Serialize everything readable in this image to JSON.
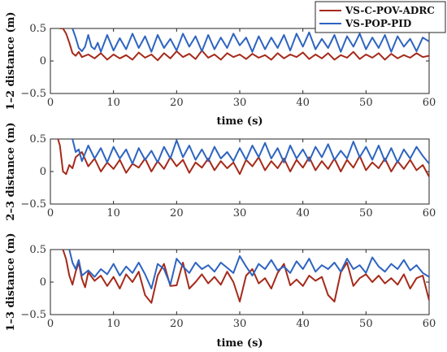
{
  "legend": {
    "placement": "top-right",
    "entries": [
      {
        "name": "VS-C-POV-ADRC",
        "color": "#a52a1a"
      },
      {
        "name": "VS-POP-PID",
        "color": "#2e64c0"
      }
    ]
  },
  "chart_data": [
    {
      "type": "line",
      "xlabel": "time (s)",
      "ylabel": "1–2 distance (m)",
      "xlim": [
        0,
        60
      ],
      "ylim": [
        -0.5,
        0.5
      ],
      "xticks": [
        0,
        10,
        20,
        30,
        40,
        50,
        60
      ],
      "yticks": [
        -0.5,
        0,
        0.5
      ],
      "grid": false,
      "series": [
        {
          "name": "VS-C-POV-ADRC",
          "color": "#a52a1a",
          "x": [
            1.5,
            2,
            2.5,
            3,
            3.5,
            4,
            4.5,
            5,
            6,
            7,
            8,
            9,
            10,
            11,
            12,
            13,
            14,
            15,
            16,
            17,
            18,
            19,
            20,
            21,
            22,
            23,
            24,
            25,
            26,
            27,
            28,
            29,
            30,
            31,
            32,
            33,
            34,
            35,
            36,
            37,
            38,
            39,
            40,
            41,
            42,
            43,
            44,
            45,
            46,
            47,
            48,
            49,
            50,
            51,
            52,
            53,
            54,
            55,
            56,
            57,
            58,
            59,
            60
          ],
          "y": [
            0.5,
            0.5,
            0.42,
            0.28,
            0.12,
            0.08,
            0.14,
            0.06,
            0.1,
            0.04,
            0.12,
            0.02,
            0.1,
            0.04,
            0.09,
            0.02,
            0.13,
            0.05,
            0.1,
            0.01,
            0.12,
            0.04,
            0.15,
            0.06,
            0.11,
            0.03,
            0.16,
            0.05,
            0.1,
            0.02,
            0.12,
            0.06,
            0.1,
            0.03,
            0.11,
            0.05,
            0.09,
            0.02,
            0.12,
            0.04,
            0.1,
            0.06,
            0.13,
            0.03,
            0.1,
            0.04,
            0.12,
            0.02,
            0.09,
            0.05,
            0.14,
            0.03,
            0.1,
            0.05,
            0.12,
            0.02,
            0.11,
            0.04,
            0.09,
            0.05,
            0.12,
            0.06,
            0.08
          ]
        },
        {
          "name": "VS-POP-PID",
          "color": "#2e64c0",
          "x": [
            3.5,
            4,
            4.5,
            5,
            5.5,
            6,
            6.5,
            7,
            7.5,
            8,
            9,
            10,
            11,
            12,
            13,
            14,
            15,
            16,
            17,
            18,
            19,
            20,
            21,
            22,
            23,
            24,
            25,
            26,
            27,
            28,
            29,
            30,
            31,
            32,
            33,
            34,
            35,
            36,
            37,
            38,
            39,
            40,
            41,
            42,
            43,
            44,
            45,
            46,
            47,
            48,
            49,
            50,
            51,
            52,
            53,
            54,
            55,
            56,
            57,
            58,
            59,
            60
          ],
          "y": [
            0.5,
            0.36,
            0.2,
            0.15,
            0.22,
            0.4,
            0.22,
            0.18,
            0.28,
            0.14,
            0.4,
            0.16,
            0.35,
            0.18,
            0.42,
            0.2,
            0.38,
            0.14,
            0.4,
            0.2,
            0.34,
            0.16,
            0.42,
            0.22,
            0.38,
            0.15,
            0.4,
            0.18,
            0.36,
            0.2,
            0.42,
            0.24,
            0.36,
            0.14,
            0.38,
            0.18,
            0.36,
            0.2,
            0.4,
            0.16,
            0.42,
            0.22,
            0.44,
            0.18,
            0.34,
            0.2,
            0.4,
            0.14,
            0.38,
            0.22,
            0.42,
            0.18,
            0.36,
            0.2,
            0.4,
            0.14,
            0.38,
            0.22,
            0.34,
            0.15,
            0.36,
            0.3
          ]
        }
      ]
    },
    {
      "type": "line",
      "xlabel": "",
      "ylabel": "2–3 distance (m)",
      "xlim": [
        0,
        60
      ],
      "ylim": [
        -0.5,
        0.5
      ],
      "xticks": [
        0,
        10,
        20,
        30,
        40,
        50,
        60
      ],
      "yticks": [
        -0.5,
        0,
        0.5
      ],
      "grid": false,
      "series": [
        {
          "name": "VS-C-POV-ADRC",
          "color": "#a52a1a",
          "x": [
            1.2,
            1.5,
            2,
            2.5,
            3,
            3.5,
            4,
            5,
            6,
            7,
            8,
            9,
            10,
            11,
            12,
            13,
            14,
            15,
            16,
            17,
            18,
            19,
            20,
            21,
            22,
            23,
            24,
            25,
            26,
            27,
            28,
            29,
            30,
            31,
            32,
            33,
            34,
            35,
            36,
            37,
            38,
            39,
            40,
            41,
            42,
            43,
            44,
            45,
            46,
            47,
            48,
            49,
            50,
            51,
            52,
            53,
            54,
            55,
            56,
            57,
            58,
            59,
            60
          ],
          "y": [
            0.5,
            0.4,
            0.0,
            -0.04,
            0.1,
            0.05,
            0.22,
            0.3,
            0.08,
            0.2,
            0.0,
            0.14,
            0.04,
            0.18,
            -0.02,
            0.12,
            0.06,
            0.2,
            0.0,
            0.16,
            0.04,
            0.22,
            0.08,
            0.18,
            -0.02,
            0.14,
            0.06,
            0.2,
            0.02,
            0.16,
            0.05,
            0.14,
            -0.04,
            0.18,
            0.08,
            0.22,
            0.02,
            0.16,
            0.05,
            0.2,
            0.0,
            0.18,
            0.06,
            0.22,
            0.02,
            0.16,
            0.04,
            0.2,
            0.0,
            0.18,
            0.06,
            0.24,
            0.02,
            0.14,
            0.05,
            0.2,
            0.0,
            0.16,
            0.04,
            0.18,
            0.02,
            0.1,
            -0.08
          ]
        },
        {
          "name": "VS-POP-PID",
          "color": "#2e64c0",
          "x": [
            3.5,
            4,
            4.5,
            5,
            6,
            7,
            8,
            9,
            10,
            11,
            12,
            13,
            14,
            15,
            16,
            17,
            18,
            19,
            20,
            21,
            22,
            23,
            24,
            25,
            26,
            27,
            28,
            29,
            30,
            31,
            32,
            33,
            34,
            35,
            36,
            37,
            38,
            39,
            40,
            41,
            42,
            43,
            44,
            45,
            46,
            47,
            48,
            49,
            50,
            51,
            52,
            53,
            54,
            55,
            56,
            57,
            58,
            59,
            60
          ],
          "y": [
            0.5,
            0.3,
            0.34,
            0.16,
            0.4,
            0.2,
            0.36,
            0.14,
            0.38,
            0.2,
            0.34,
            0.12,
            0.36,
            0.18,
            0.32,
            0.14,
            0.38,
            0.2,
            0.48,
            0.22,
            0.4,
            0.18,
            0.34,
            0.16,
            0.38,
            0.2,
            0.3,
            0.16,
            0.36,
            0.18,
            0.4,
            0.22,
            0.44,
            0.2,
            0.36,
            0.14,
            0.4,
            0.2,
            0.34,
            0.16,
            0.38,
            0.22,
            0.42,
            0.18,
            0.32,
            0.2,
            0.46,
            0.22,
            0.38,
            0.18,
            0.4,
            0.16,
            0.36,
            0.14,
            0.34,
            0.2,
            0.38,
            0.24,
            0.12
          ]
        }
      ]
    },
    {
      "type": "line",
      "xlabel": "time (s)",
      "ylabel": "1–3 distance (m)",
      "xlim": [
        0,
        60
      ],
      "ylim": [
        -0.5,
        0.5
      ],
      "xticks": [
        0,
        10,
        20,
        30,
        40,
        50,
        60
      ],
      "yticks": [
        -0.5,
        0,
        0.5
      ],
      "grid": false,
      "series": [
        {
          "name": "VS-C-POV-ADRC",
          "color": "#a52a1a",
          "x": [
            2,
            2.5,
            3,
            3.5,
            4,
            4.5,
            5,
            5.5,
            6,
            7,
            8,
            9,
            10,
            11,
            12,
            13,
            14,
            15,
            16,
            17,
            18,
            19,
            20,
            21,
            22,
            23,
            24,
            25,
            26,
            27,
            28,
            29,
            30,
            31,
            32,
            33,
            34,
            35,
            36,
            37,
            38,
            39,
            40,
            41,
            42,
            43,
            44,
            45,
            46,
            47,
            48,
            49,
            50,
            51,
            52,
            53,
            54,
            55,
            56,
            57,
            58,
            59,
            60
          ],
          "y": [
            0.5,
            0.35,
            0.1,
            -0.04,
            0.16,
            0.3,
            0.05,
            -0.08,
            0.15,
            0.02,
            0.1,
            -0.06,
            0.08,
            -0.1,
            0.12,
            0.0,
            0.16,
            -0.2,
            -0.32,
            0.1,
            0.28,
            -0.06,
            -0.05,
            0.3,
            -0.1,
            0.0,
            0.12,
            -0.02,
            0.08,
            -0.04,
            0.16,
            0.0,
            -0.3,
            0.1,
            0.2,
            -0.02,
            0.06,
            -0.1,
            0.14,
            0.28,
            -0.05,
            0.04,
            -0.06,
            0.1,
            0.02,
            0.08,
            -0.2,
            -0.3,
            0.15,
            0.3,
            -0.06,
            0.06,
            0.12,
            0.0,
            0.1,
            -0.02,
            0.06,
            -0.04,
            0.12,
            -0.1,
            0.06,
            0.1,
            -0.28
          ]
        },
        {
          "name": "VS-POP-PID",
          "color": "#2e64c0",
          "x": [
            3,
            3.5,
            4,
            4.5,
            5,
            6,
            7,
            8,
            9,
            10,
            11,
            12,
            13,
            14,
            15,
            16,
            17,
            18,
            19,
            20,
            21,
            22,
            23,
            24,
            25,
            26,
            27,
            28,
            29,
            30,
            31,
            32,
            33,
            34,
            35,
            36,
            37,
            38,
            39,
            40,
            41,
            42,
            43,
            44,
            45,
            46,
            47,
            48,
            49,
            50,
            51,
            52,
            53,
            54,
            55,
            56,
            57,
            58,
            59,
            60
          ],
          "y": [
            0.5,
            0.3,
            0.2,
            0.34,
            0.1,
            0.18,
            0.08,
            0.2,
            0.12,
            0.28,
            0.1,
            0.24,
            0.14,
            0.3,
            0.12,
            -0.1,
            0.28,
            0.2,
            -0.04,
            0.36,
            0.24,
            0.14,
            0.3,
            0.2,
            0.26,
            0.16,
            0.3,
            0.22,
            0.14,
            0.4,
            0.24,
            0.1,
            0.28,
            0.2,
            0.34,
            0.18,
            0.24,
            0.14,
            0.32,
            0.2,
            0.36,
            0.16,
            0.26,
            0.2,
            0.3,
            0.16,
            0.36,
            0.2,
            0.26,
            0.14,
            0.38,
            0.24,
            0.16,
            0.28,
            0.2,
            0.34,
            0.18,
            0.26,
            0.14,
            0.08
          ]
        }
      ]
    }
  ]
}
